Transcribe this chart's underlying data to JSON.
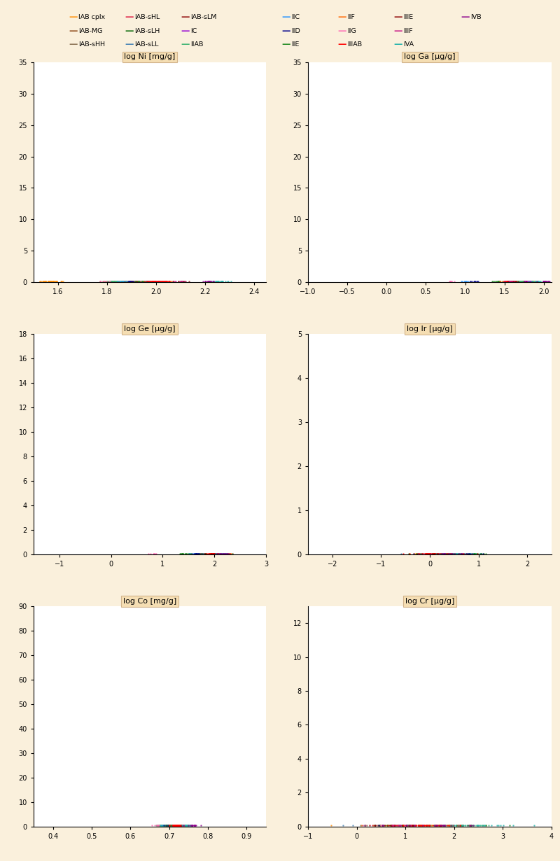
{
  "background_color": "#FAF0DC",
  "plot_bg": "#FFFFFF",
  "title_bg": "#F5DEB3",
  "title_edge": "#D2B48C",
  "groups": [
    {
      "label": "IAB cplx",
      "color": "#FF8C00",
      "Ni": {
        "mean": 1.575,
        "std": 0.025,
        "n": 45
      },
      "Ga": {
        "mean": 1.83,
        "std": 0.045,
        "n": 45
      },
      "Ge": {
        "mean": 2.09,
        "std": 0.06,
        "n": 45
      },
      "Ir": {
        "mean": 0.15,
        "std": 0.35,
        "n": 45
      },
      "Co": {
        "mean": 0.695,
        "std": 0.007,
        "n": 45
      },
      "Cr": {
        "mean": 1.1,
        "std": 0.5,
        "n": 45
      }
    },
    {
      "label": "IAB-MG",
      "color": "#8B4513",
      "Ni": {
        "mean": 1.815,
        "std": 0.022,
        "n": 18
      },
      "Ga": {
        "mean": 1.825,
        "std": 0.04,
        "n": 18
      },
      "Ge": {
        "mean": 1.93,
        "std": 0.05,
        "n": 18
      },
      "Ir": {
        "mean": 0.1,
        "std": 0.28,
        "n": 18
      },
      "Co": {
        "mean": 0.69,
        "std": 0.007,
        "n": 18
      },
      "Cr": {
        "mean": 1.0,
        "std": 0.4,
        "n": 18
      }
    },
    {
      "label": "IAB-sHH",
      "color": "#8B7355",
      "Ni": {
        "mean": 1.955,
        "std": 0.018,
        "n": 12
      },
      "Ga": {
        "mean": 1.775,
        "std": 0.032,
        "n": 12
      },
      "Ge": {
        "mean": 1.8,
        "std": 0.04,
        "n": 12
      },
      "Ir": {
        "mean": -0.05,
        "std": 0.2,
        "n": 12
      },
      "Co": {
        "mean": 0.682,
        "std": 0.007,
        "n": 12
      },
      "Cr": {
        "mean": 0.8,
        "std": 0.35,
        "n": 12
      }
    },
    {
      "label": "IAB-sHL",
      "color": "#DC143C",
      "Ni": {
        "mean": 1.925,
        "std": 0.02,
        "n": 14
      },
      "Ga": {
        "mean": 1.748,
        "std": 0.036,
        "n": 14
      },
      "Ge": {
        "mean": 1.755,
        "std": 0.042,
        "n": 14
      },
      "Ir": {
        "mean": -0.02,
        "std": 0.22,
        "n": 14
      },
      "Co": {
        "mean": 0.685,
        "std": 0.007,
        "n": 14
      },
      "Cr": {
        "mean": 0.75,
        "std": 0.35,
        "n": 14
      }
    },
    {
      "label": "IAB-sLH",
      "color": "#006400",
      "Ni": {
        "mean": 1.885,
        "std": 0.022,
        "n": 12
      },
      "Ga": {
        "mean": 1.718,
        "std": 0.038,
        "n": 12
      },
      "Ge": {
        "mean": 1.72,
        "std": 0.05,
        "n": 12
      },
      "Ir": {
        "mean": 0.05,
        "std": 0.22,
        "n": 12
      },
      "Co": {
        "mean": 0.687,
        "std": 0.008,
        "n": 12
      },
      "Cr": {
        "mean": 0.8,
        "std": 0.35,
        "n": 12
      }
    },
    {
      "label": "IAB-sLL",
      "color": "#4682B4",
      "Ni": {
        "mean": 1.858,
        "std": 0.022,
        "n": 12
      },
      "Ga": {
        "mean": 1.698,
        "std": 0.038,
        "n": 12
      },
      "Ge": {
        "mean": 1.7,
        "std": 0.048,
        "n": 12
      },
      "Ir": {
        "mean": 0.0,
        "std": 0.22,
        "n": 12
      },
      "Co": {
        "mean": 0.682,
        "std": 0.008,
        "n": 12
      },
      "Cr": {
        "mean": 0.65,
        "std": 0.35,
        "n": 12
      }
    },
    {
      "label": "IAB-sLM",
      "color": "#8B0000",
      "Ni": {
        "mean": 1.905,
        "std": 0.022,
        "n": 14
      },
      "Ga": {
        "mean": 1.738,
        "std": 0.038,
        "n": 14
      },
      "Ge": {
        "mean": 2.0,
        "std": 0.07,
        "n": 14
      },
      "Ir": {
        "mean": 0.18,
        "std": 0.25,
        "n": 14
      },
      "Co": {
        "mean": 0.694,
        "std": 0.009,
        "n": 14
      },
      "Cr": {
        "mean": 0.9,
        "std": 0.38,
        "n": 14
      }
    },
    {
      "label": "IC",
      "color": "#9400D3",
      "Ni": {
        "mean": 1.972,
        "std": 0.016,
        "n": 10
      },
      "Ga": {
        "mean": 1.808,
        "std": 0.032,
        "n": 10
      },
      "Ge": {
        "mean": 2.21,
        "std": 0.05,
        "n": 10
      },
      "Ir": {
        "mean": 0.4,
        "std": 0.2,
        "n": 10
      },
      "Co": {
        "mean": 0.711,
        "std": 0.007,
        "n": 10
      },
      "Cr": {
        "mean": 1.1,
        "std": 0.38,
        "n": 10
      }
    },
    {
      "label": "IIAB",
      "color": "#3CB371",
      "Ni": {
        "mean": 1.832,
        "std": 0.02,
        "n": 40
      },
      "Ga": {
        "mean": 1.658,
        "std": 0.032,
        "n": 40
      },
      "Ge": {
        "mean": 2.16,
        "std": 0.055,
        "n": 40
      },
      "Ir": {
        "mean": 0.88,
        "std": 0.12,
        "n": 40
      },
      "Co": {
        "mean": 0.68,
        "std": 0.007,
        "n": 40
      },
      "Cr": {
        "mean": 1.9,
        "std": 0.38,
        "n": 40
      }
    },
    {
      "label": "IIC",
      "color": "#1E90FF",
      "Ni": {
        "mean": 1.872,
        "std": 0.016,
        "n": 8
      },
      "Ga": {
        "mean": 1.008,
        "std": 0.036,
        "n": 8
      },
      "Ge": {
        "mean": 1.52,
        "std": 0.05,
        "n": 8
      },
      "Ir": {
        "mean": 0.7,
        "std": 0.18,
        "n": 8
      },
      "Co": {
        "mean": 0.699,
        "std": 0.007,
        "n": 8
      },
      "Cr": {
        "mean": 1.2,
        "std": 0.38,
        "n": 8
      }
    },
    {
      "label": "IID",
      "color": "#00008B",
      "Ni": {
        "mean": 1.89,
        "std": 0.016,
        "n": 10
      },
      "Ga": {
        "mean": 1.11,
        "std": 0.036,
        "n": 10
      },
      "Ge": {
        "mean": 1.62,
        "std": 0.05,
        "n": 10
      },
      "Ir": {
        "mean": 0.8,
        "std": 0.18,
        "n": 10
      },
      "Co": {
        "mean": 0.701,
        "std": 0.007,
        "n": 10
      },
      "Cr": {
        "mean": 1.4,
        "std": 0.38,
        "n": 10
      }
    },
    {
      "label": "IIE",
      "color": "#228B22",
      "Ni": {
        "mean": 1.948,
        "std": 0.02,
        "n": 18
      },
      "Ga": {
        "mean": 1.415,
        "std": 0.045,
        "n": 18
      },
      "Ge": {
        "mean": 1.42,
        "std": 0.058,
        "n": 18
      },
      "Ir": {
        "mean": 0.5,
        "std": 0.25,
        "n": 18
      },
      "Co": {
        "mean": 0.712,
        "std": 0.009,
        "n": 18
      },
      "Cr": {
        "mean": 2.1,
        "std": 0.45,
        "n": 18
      }
    },
    {
      "label": "IIF",
      "color": "#FF6600",
      "Ni": {
        "mean": 2.058,
        "std": 0.016,
        "n": 8
      },
      "Ga": {
        "mean": 1.515,
        "std": 0.036,
        "n": 8
      },
      "Ge": {
        "mean": 2.3,
        "std": 0.055,
        "n": 8
      },
      "Ir": {
        "mean": 0.28,
        "std": 0.2,
        "n": 8
      },
      "Co": {
        "mean": 0.72,
        "std": 0.008,
        "n": 8
      },
      "Cr": {
        "mean": 1.7,
        "std": 0.38,
        "n": 8
      }
    },
    {
      "label": "IIG",
      "color": "#FF69B4",
      "Ni": {
        "mean": 1.79,
        "std": 0.015,
        "n": 7
      },
      "Ga": {
        "mean": 0.818,
        "std": 0.032,
        "n": 7
      },
      "Ge": {
        "mean": 0.82,
        "std": 0.038,
        "n": 7
      },
      "Ir": {
        "mean": 0.1,
        "std": 0.18,
        "n": 7
      },
      "Co": {
        "mean": 0.671,
        "std": 0.006,
        "n": 7
      },
      "Cr": {
        "mean": 0.8,
        "std": 0.32,
        "n": 7
      }
    },
    {
      "label": "IIIAB",
      "color": "#FF0000",
      "Ni": {
        "mean": 2.002,
        "std": 0.025,
        "n": 70
      },
      "Ga": {
        "mean": 1.558,
        "std": 0.035,
        "n": 70
      },
      "Ge": {
        "mean": 2.01,
        "std": 0.055,
        "n": 70
      },
      "Ir": {
        "mean": 0.18,
        "std": 0.25,
        "n": 70
      },
      "Co": {
        "mean": 0.72,
        "std": 0.009,
        "n": 70
      },
      "Cr": {
        "mean": 1.4,
        "std": 0.42,
        "n": 70
      }
    },
    {
      "label": "IIIE",
      "color": "#8B0000",
      "Ni": {
        "mean": 2.108,
        "std": 0.02,
        "n": 10
      },
      "Ga": {
        "mean": 1.608,
        "std": 0.035,
        "n": 10
      },
      "Ge": {
        "mean": 2.06,
        "std": 0.052,
        "n": 10
      },
      "Ir": {
        "mean": 0.3,
        "std": 0.22,
        "n": 10
      },
      "Co": {
        "mean": 0.741,
        "std": 0.008,
        "n": 10
      },
      "Cr": {
        "mean": 1.1,
        "std": 0.38,
        "n": 10
      }
    },
    {
      "label": "IIIF",
      "color": "#C71585",
      "Ni": {
        "mean": 2.09,
        "std": 0.016,
        "n": 8
      },
      "Ga": {
        "mean": 1.568,
        "std": 0.035,
        "n": 8
      },
      "Ge": {
        "mean": 2.11,
        "std": 0.052,
        "n": 8
      },
      "Ir": {
        "mean": 0.35,
        "std": 0.2,
        "n": 8
      },
      "Co": {
        "mean": 0.745,
        "std": 0.008,
        "n": 8
      },
      "Cr": {
        "mean": 0.9,
        "std": 0.38,
        "n": 8
      }
    },
    {
      "label": "IVA",
      "color": "#20B2AA",
      "Ni": {
        "mean": 2.258,
        "std": 0.022,
        "n": 25
      },
      "Ga": {
        "mean": 1.908,
        "std": 0.042,
        "n": 25
      },
      "Ge": {
        "mean": 2.15,
        "std": 0.062,
        "n": 25
      },
      "Ir": {
        "mean": 0.4,
        "std": 0.2,
        "n": 25
      },
      "Co": {
        "mean": 0.75,
        "std": 0.008,
        "n": 25
      },
      "Cr": {
        "mean": 2.4,
        "std": 0.45,
        "n": 25
      }
    },
    {
      "label": "IVB",
      "color": "#8B008B",
      "Ni": {
        "mean": 2.218,
        "std": 0.02,
        "n": 18
      },
      "Ga": {
        "mean": 2.015,
        "std": 0.042,
        "n": 18
      },
      "Ge": {
        "mean": 2.2,
        "std": 0.062,
        "n": 18
      },
      "Ir": {
        "mean": 0.5,
        "std": 0.22,
        "n": 18
      },
      "Co": {
        "mean": 0.76,
        "std": 0.009,
        "n": 18
      },
      "Cr": {
        "mean": 1.7,
        "std": 0.42,
        "n": 18
      }
    }
  ],
  "panels": [
    {
      "title": "log Ni [mg/g]",
      "key": "Ni",
      "xlim": [
        1.5,
        2.45
      ],
      "ylim": [
        0,
        35
      ],
      "xticks": [
        1.6,
        1.8,
        2.0,
        2.2,
        2.4
      ]
    },
    {
      "title": "log Ga [μg/g]",
      "key": "Ga",
      "xlim": [
        -1.0,
        2.1
      ],
      "ylim": [
        0,
        35
      ],
      "xticks": [
        -1.0,
        -0.5,
        0.0,
        0.5,
        1.0,
        1.5,
        2.0
      ]
    },
    {
      "title": "log Ge [μg/g]",
      "key": "Ge",
      "xlim": [
        -1.5,
        3.0
      ],
      "ylim": [
        0,
        18
      ],
      "xticks": [
        -1,
        0,
        1,
        2,
        3
      ]
    },
    {
      "title": "log Ir [μg/g]",
      "key": "Ir",
      "xlim": [
        -2.5,
        2.5
      ],
      "ylim": [
        0,
        5
      ],
      "xticks": [
        -2,
        -1,
        0,
        1,
        2
      ]
    },
    {
      "title": "log Co [mg/g]",
      "key": "Co",
      "xlim": [
        0.35,
        0.95
      ],
      "ylim": [
        0,
        90
      ],
      "xticks": [
        0.4,
        0.5,
        0.6,
        0.7,
        0.8,
        0.9
      ]
    },
    {
      "title": "log Cr [μg/g]",
      "key": "Cr",
      "xlim": [
        -1.0,
        4.0
      ],
      "ylim": [
        0,
        13
      ],
      "xticks": [
        -1,
        0,
        1,
        2,
        3,
        4
      ]
    }
  ],
  "legend_rows": [
    [
      [
        "IAB cplx",
        "#FF8C00"
      ],
      [
        "IAB-sHL",
        "#DC143C"
      ],
      [
        "IAB-sLM",
        "#8B0000"
      ],
      [
        "IIC",
        "#1E90FF"
      ],
      [
        "IIF",
        "#FF6600"
      ],
      [
        "IIIE",
        "#8B0000"
      ],
      [
        "IVB",
        "#8B008B"
      ]
    ],
    [
      [
        "IAB-MG",
        "#8B4513"
      ],
      [
        "IAB-sLH",
        "#006400"
      ],
      [
        "IC",
        "#9400D3"
      ],
      [
        "IID",
        "#00008B"
      ],
      [
        "IIG",
        "#FF69B4"
      ],
      [
        "IIIF",
        "#C71585"
      ]
    ],
    [
      [
        "IAB-sHH",
        "#8B7355"
      ],
      [
        "IAB-sLL",
        "#4682B4"
      ],
      [
        "IIAB",
        "#3CB371"
      ],
      [
        "IIE",
        "#228B22"
      ],
      [
        "IIIAB",
        "#FF0000"
      ],
      [
        "IVA",
        "#20B2AA"
      ]
    ]
  ]
}
